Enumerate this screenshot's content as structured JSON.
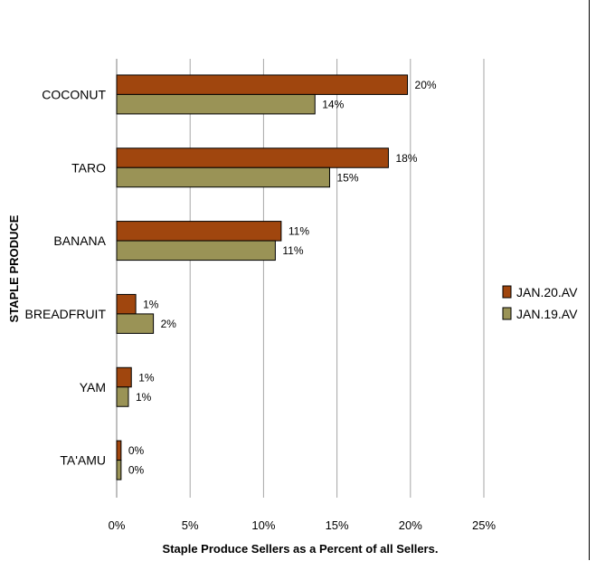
{
  "chart_data": {
    "type": "bar",
    "orientation": "horizontal",
    "categories": [
      "COCONUT",
      "TARO",
      "BANANA",
      "BREADFRUIT",
      "YAM",
      "TA'AMU"
    ],
    "series": [
      {
        "name": "JAN.20.AV",
        "color": "#a0460e",
        "values": [
          19.8,
          18.5,
          11.2,
          1.3,
          1.0,
          0.3
        ],
        "labels": [
          "20%",
          "18%",
          "11%",
          "1%",
          "1%",
          "0%"
        ]
      },
      {
        "name": "JAN.19.AV",
        "color": "#9a9356",
        "values": [
          13.5,
          14.5,
          10.8,
          2.5,
          0.8,
          0.3
        ],
        "labels": [
          "14%",
          "15%",
          "11%",
          "2%",
          "1%",
          "0%"
        ]
      }
    ],
    "xlim": [
      0,
      25
    ],
    "xticks": [
      0,
      5,
      10,
      15,
      20,
      25
    ],
    "xtick_labels": [
      "0%",
      "5%",
      "10%",
      "15%",
      "20%",
      "25%"
    ],
    "xlabel": "Staple Produce Sellers as a Percent of all Sellers.",
    "ylabel": "STAPLE PRODUCE",
    "grid": "vertical",
    "legend_position": "right",
    "title": ""
  }
}
